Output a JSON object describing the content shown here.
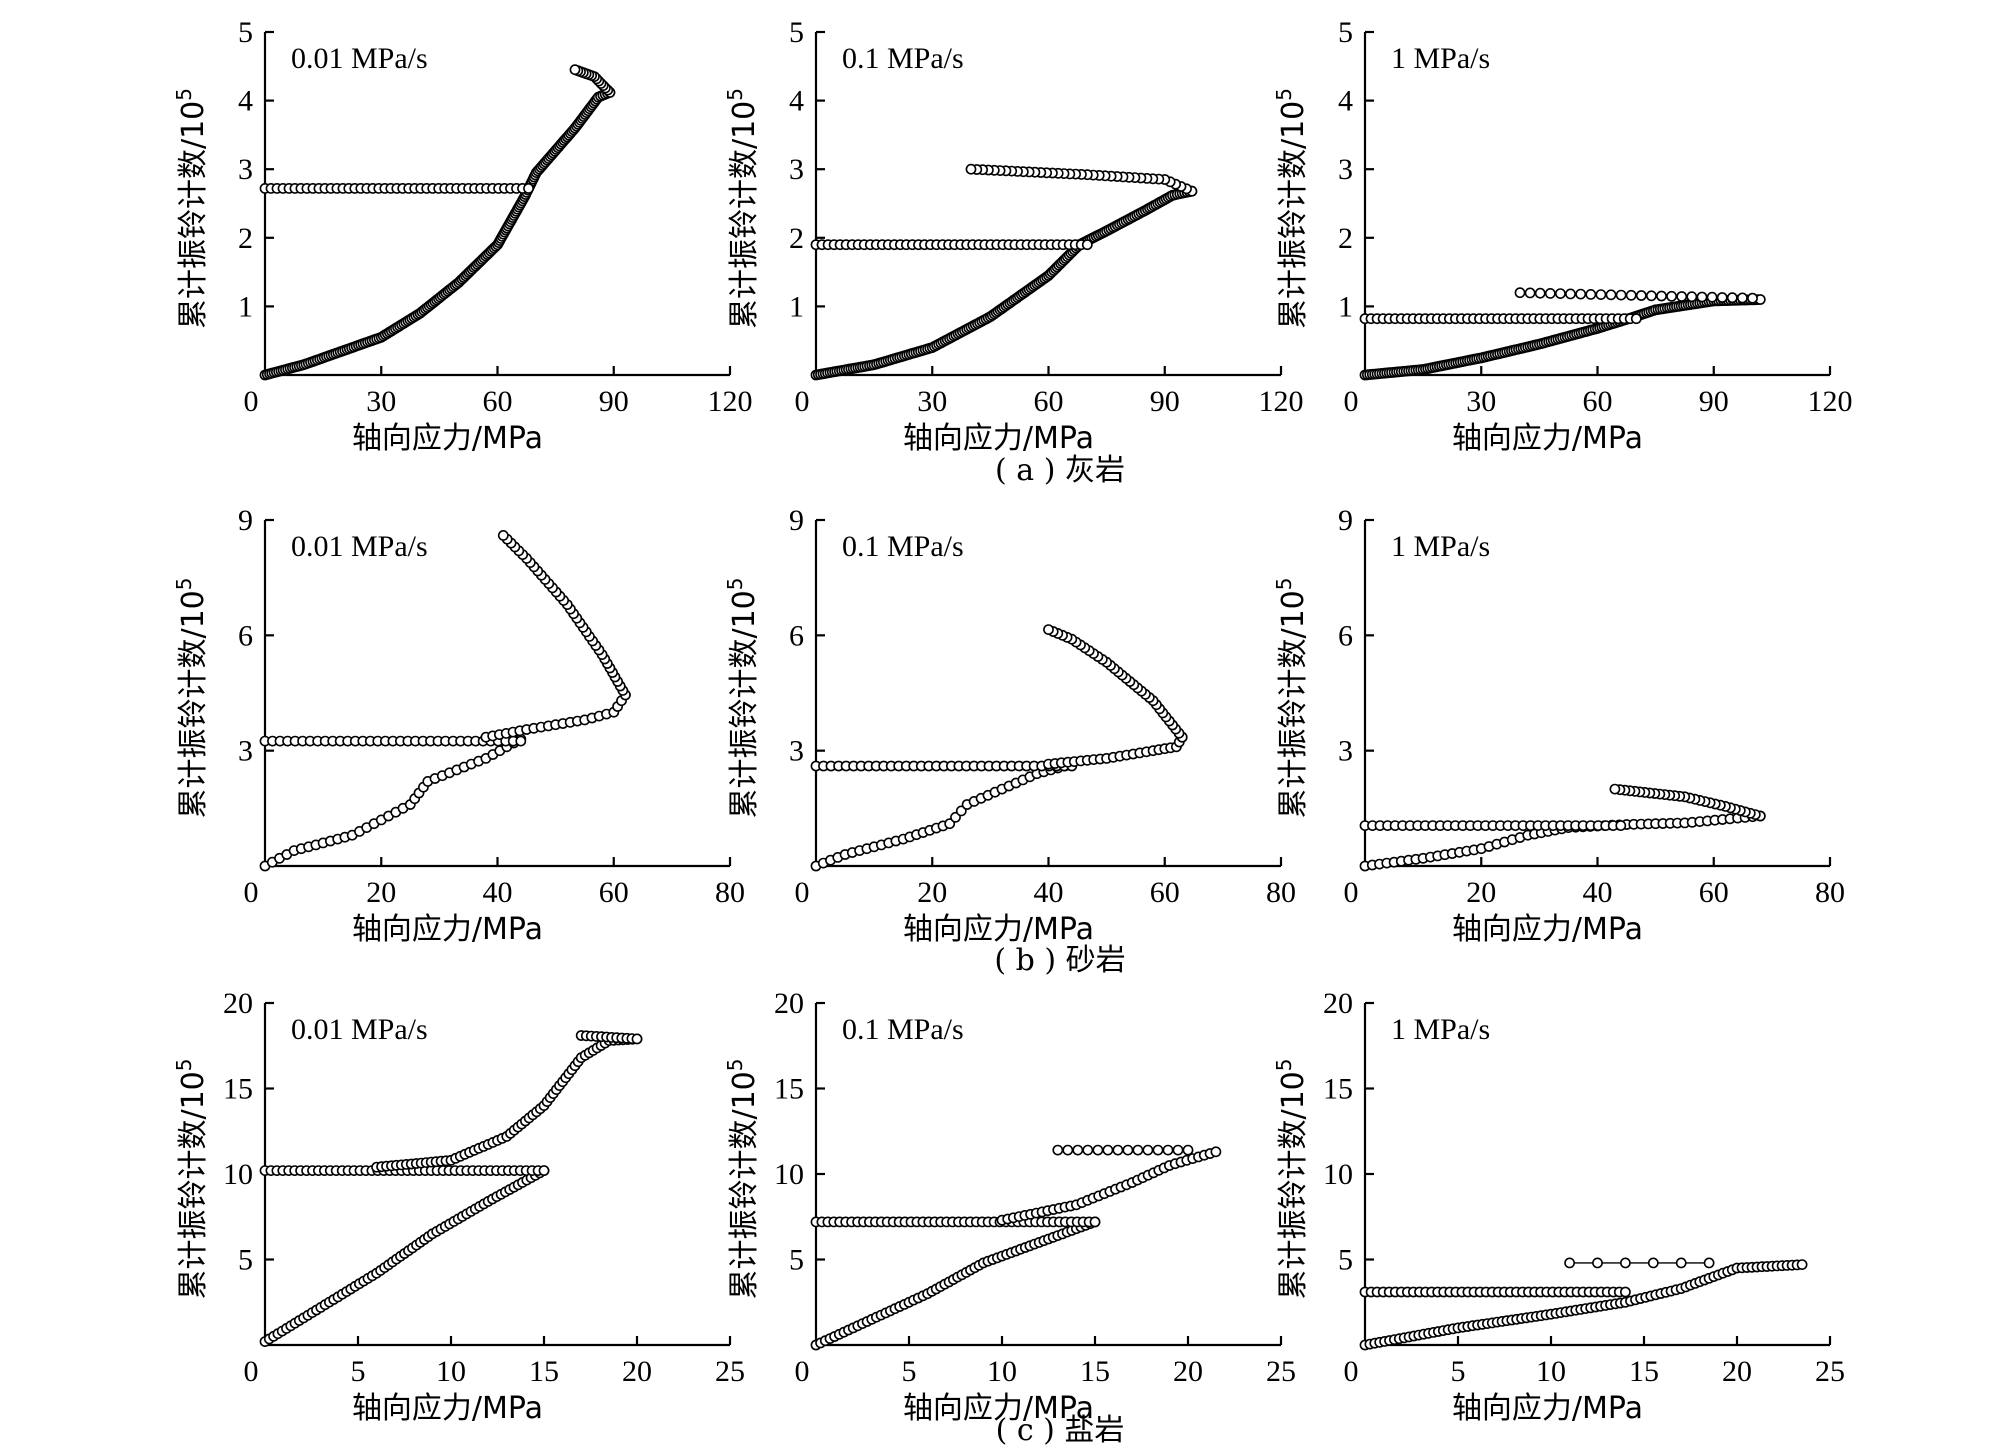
{
  "captions": [
    "( a ) 灰岩",
    "( b ) 砂岩",
    "( c ) 盐岩"
  ],
  "x_axis_label": "轴向应力/MPa",
  "y_axis_label": "累计振铃计数/10",
  "y_axis_label_exponent": "5",
  "chart_data": [
    {
      "id": "limestone-0.01",
      "type": "scatter",
      "row": 0,
      "col": 0,
      "title": "0.01 MPa/s",
      "xlabel": "轴向应力/MPa",
      "ylabel": "累计振铃计数/10^5",
      "xlim": [
        0,
        120
      ],
      "ylim": [
        0,
        5
      ],
      "xticks": [
        0,
        30,
        60,
        90,
        120
      ],
      "yticks": [
        1,
        2,
        3,
        4,
        5
      ],
      "origin_label": "0",
      "grid": false,
      "segments": [
        {
          "kind": "curve",
          "density": 5,
          "points": [
            [
              0,
              0
            ],
            [
              10,
              0.15
            ],
            [
              20,
              0.35
            ],
            [
              30,
              0.55
            ],
            [
              40,
              0.9
            ],
            [
              50,
              1.35
            ],
            [
              60,
              1.9
            ],
            [
              67,
              2.6
            ],
            [
              70,
              2.95
            ],
            [
              80,
              3.6
            ],
            [
              86,
              4.05
            ],
            [
              89,
              4.12
            ]
          ]
        },
        {
          "kind": "curve",
          "density": 4,
          "points": [
            [
              89,
              4.12
            ],
            [
              85,
              4.35
            ],
            [
              80,
              4.45
            ]
          ]
        },
        {
          "kind": "line",
          "density": 2,
          "points": [
            [
              0,
              2.72
            ],
            [
              68,
              2.72
            ]
          ]
        }
      ]
    },
    {
      "id": "limestone-0.1",
      "type": "scatter",
      "row": 0,
      "col": 1,
      "title": "0.1 MPa/s",
      "xlabel": "轴向应力/MPa",
      "ylabel": "累计振铃计数/10^5",
      "xlim": [
        0,
        120
      ],
      "ylim": [
        0,
        5
      ],
      "xticks": [
        0,
        30,
        60,
        90,
        120
      ],
      "yticks": [
        1,
        2,
        3,
        4,
        5
      ],
      "origin_label": "0",
      "grid": false,
      "segments": [
        {
          "kind": "curve",
          "density": 5,
          "points": [
            [
              0,
              0
            ],
            [
              15,
              0.15
            ],
            [
              30,
              0.4
            ],
            [
              45,
              0.85
            ],
            [
              60,
              1.45
            ],
            [
              68,
              1.9
            ],
            [
              75,
              2.1
            ],
            [
              85,
              2.4
            ],
            [
              92,
              2.62
            ],
            [
              97,
              2.68
            ]
          ]
        },
        {
          "kind": "curve",
          "density": 2,
          "points": [
            [
              97,
              2.68
            ],
            [
              90,
              2.85
            ],
            [
              70,
              2.92
            ],
            [
              55,
              2.96
            ],
            [
              40,
              3.0
            ]
          ]
        },
        {
          "kind": "line",
          "density": 2,
          "points": [
            [
              0,
              1.9
            ],
            [
              70,
              1.9
            ]
          ]
        }
      ]
    },
    {
      "id": "limestone-1",
      "type": "scatter",
      "row": 0,
      "col": 2,
      "title": "1 MPa/s",
      "xlabel": "轴向应力/MPa",
      "ylabel": "累计振铃计数/10^5",
      "xlim": [
        0,
        120
      ],
      "ylim": [
        0,
        5
      ],
      "xticks": [
        0,
        30,
        60,
        90,
        120
      ],
      "yticks": [
        1,
        2,
        3,
        4,
        5
      ],
      "origin_label": "0",
      "grid": false,
      "segments": [
        {
          "kind": "curve",
          "density": 5,
          "points": [
            [
              0,
              0
            ],
            [
              15,
              0.08
            ],
            [
              30,
              0.25
            ],
            [
              45,
              0.45
            ],
            [
              60,
              0.68
            ],
            [
              68,
              0.82
            ],
            [
              75,
              0.95
            ],
            [
              90,
              1.08
            ],
            [
              102,
              1.1
            ]
          ]
        },
        {
          "kind": "line",
          "density": 2,
          "points": [
            [
              0,
              0.82
            ],
            [
              70,
              0.82
            ]
          ]
        },
        {
          "kind": "line",
          "density": 1.2,
          "points": [
            [
              40,
              1.2
            ],
            [
              100,
              1.12
            ]
          ]
        }
      ]
    },
    {
      "id": "sandstone-0.01",
      "type": "scatter",
      "row": 1,
      "col": 0,
      "title": "0.01 MPa/s",
      "xlabel": "轴向应力/MPa",
      "ylabel": "累计振铃计数/10^5",
      "xlim": [
        0,
        80
      ],
      "ylim": [
        0,
        9
      ],
      "xticks": [
        0,
        20,
        40,
        60,
        80
      ],
      "yticks": [
        3,
        6,
        9
      ],
      "origin_label": "0",
      "grid": false,
      "segments": [
        {
          "kind": "curve",
          "density": 1.6,
          "points": [
            [
              0,
              0
            ],
            [
              5,
              0.4
            ],
            [
              15,
              0.8
            ],
            [
              20,
              1.2
            ],
            [
              25,
              1.6
            ],
            [
              28,
              2.2
            ],
            [
              33,
              2.5
            ],
            [
              38,
              2.8
            ],
            [
              44,
              3.3
            ]
          ]
        },
        {
          "kind": "line",
          "density": 1.6,
          "points": [
            [
              0,
              3.25
            ],
            [
              44,
              3.25
            ]
          ]
        },
        {
          "kind": "curve",
          "density": 1.6,
          "points": [
            [
              38,
              3.35
            ],
            [
              45,
              3.55
            ],
            [
              55,
              3.8
            ],
            [
              60,
              4.0
            ],
            [
              62,
              4.45
            ]
          ]
        },
        {
          "kind": "curve",
          "density": 2.2,
          "points": [
            [
              62,
              4.45
            ],
            [
              58,
              5.5
            ],
            [
              52,
              6.8
            ],
            [
              45,
              8.0
            ],
            [
              41,
              8.6
            ]
          ]
        }
      ]
    },
    {
      "id": "sandstone-0.1",
      "type": "scatter",
      "row": 1,
      "col": 1,
      "title": "0.1 MPa/s",
      "xlabel": "轴向应力/MPa",
      "ylabel": "累计振铃计数/10^5",
      "xlim": [
        0,
        80
      ],
      "ylim": [
        0,
        9
      ],
      "xticks": [
        0,
        20,
        40,
        60,
        80
      ],
      "yticks": [
        3,
        6,
        9
      ],
      "origin_label": "0",
      "grid": false,
      "segments": [
        {
          "kind": "curve",
          "density": 1.6,
          "points": [
            [
              0,
              0
            ],
            [
              5,
              0.3
            ],
            [
              15,
              0.7
            ],
            [
              23,
              1.1
            ],
            [
              26,
              1.6
            ],
            [
              32,
              2.0
            ],
            [
              38,
              2.4
            ],
            [
              44,
              2.65
            ]
          ]
        },
        {
          "kind": "line",
          "density": 1.6,
          "points": [
            [
              0,
              2.6
            ],
            [
              44,
              2.6
            ]
          ]
        },
        {
          "kind": "curve",
          "density": 1.8,
          "points": [
            [
              40,
              2.65
            ],
            [
              50,
              2.8
            ],
            [
              58,
              3.0
            ],
            [
              62,
              3.1
            ],
            [
              63,
              3.35
            ]
          ]
        },
        {
          "kind": "curve",
          "density": 2.4,
          "points": [
            [
              63,
              3.35
            ],
            [
              58,
              4.3
            ],
            [
              50,
              5.3
            ],
            [
              44,
              5.9
            ],
            [
              40,
              6.15
            ]
          ]
        }
      ]
    },
    {
      "id": "sandstone-1",
      "type": "scatter",
      "row": 1,
      "col": 2,
      "title": "1 MPa/s",
      "xlabel": "轴向应力/MPa",
      "ylabel": "累计振铃计数/10^5",
      "xlim": [
        0,
        80
      ],
      "ylim": [
        0,
        9
      ],
      "xticks": [
        0,
        20,
        40,
        60,
        80
      ],
      "yticks": [
        3,
        6,
        9
      ],
      "origin_label": "0",
      "grid": false,
      "segments": [
        {
          "kind": "curve",
          "density": 1.6,
          "points": [
            [
              0,
              0
            ],
            [
              10,
              0.2
            ],
            [
              20,
              0.45
            ],
            [
              28,
              0.8
            ],
            [
              35,
              1.0
            ],
            [
              45,
              1.08
            ],
            [
              55,
              1.12
            ],
            [
              68,
              1.3
            ]
          ]
        },
        {
          "kind": "line",
          "density": 1.6,
          "points": [
            [
              0,
              1.05
            ],
            [
              44,
              1.05
            ]
          ]
        },
        {
          "kind": "curve",
          "density": 2.4,
          "points": [
            [
              68,
              1.3
            ],
            [
              62,
              1.55
            ],
            [
              55,
              1.8
            ],
            [
              43,
              2.0
            ]
          ]
        }
      ]
    },
    {
      "id": "saltrock-0.01",
      "type": "scatter",
      "row": 2,
      "col": 0,
      "title": "0.01 MPa/s",
      "xlabel": "轴向应力/MPa",
      "ylabel": "累计振铃计数/10^5",
      "xlim": [
        0,
        25
      ],
      "ylim": [
        0,
        20
      ],
      "xticks": [
        0,
        5,
        10,
        15,
        20,
        25
      ],
      "yticks": [
        5,
        10,
        15,
        20
      ],
      "origin_label": "0",
      "grid": false,
      "segments": [
        {
          "kind": "curve",
          "density": 2.4,
          "points": [
            [
              0,
              0.2
            ],
            [
              3,
              2.2
            ],
            [
              6,
              4.2
            ],
            [
              9,
              6.5
            ],
            [
              12,
              8.4
            ],
            [
              15,
              10.2
            ]
          ]
        },
        {
          "kind": "line",
          "density": 2,
          "points": [
            [
              0,
              10.2
            ],
            [
              15,
              10.2
            ]
          ]
        },
        {
          "kind": "curve",
          "density": 2.4,
          "points": [
            [
              6,
              10.4
            ],
            [
              10,
              10.8
            ],
            [
              13,
              12.2
            ],
            [
              15,
              14.0
            ],
            [
              17,
              16.8
            ],
            [
              18.5,
              17.8
            ],
            [
              20,
              17.9
            ]
          ]
        },
        {
          "kind": "line",
          "density": 2.4,
          "points": [
            [
              17,
              18.1
            ],
            [
              20,
              17.9
            ]
          ]
        }
      ]
    },
    {
      "id": "saltrock-0.1",
      "type": "scatter",
      "row": 2,
      "col": 1,
      "title": "0.1 MPa/s",
      "xlabel": "轴向应力/MPa",
      "ylabel": "累计振铃计数/10^5",
      "xlim": [
        0,
        25
      ],
      "ylim": [
        0,
        20
      ],
      "xticks": [
        0,
        5,
        10,
        15,
        20,
        25
      ],
      "yticks": [
        5,
        10,
        15,
        20
      ],
      "origin_label": "0",
      "grid": false,
      "segments": [
        {
          "kind": "curve",
          "density": 2.4,
          "points": [
            [
              0,
              0
            ],
            [
              3,
              1.5
            ],
            [
              6,
              3.0
            ],
            [
              9,
              4.8
            ],
            [
              12,
              6.0
            ],
            [
              15,
              7.2
            ]
          ]
        },
        {
          "kind": "line",
          "density": 2,
          "points": [
            [
              0,
              7.2
            ],
            [
              15,
              7.2
            ]
          ]
        },
        {
          "kind": "curve",
          "density": 2,
          "points": [
            [
              10,
              7.3
            ],
            [
              14,
              8.2
            ],
            [
              17,
              9.5
            ],
            [
              19,
              10.5
            ],
            [
              21.5,
              11.3
            ]
          ]
        },
        {
          "kind": "line",
          "density": 1.2,
          "points": [
            [
              13,
              11.4
            ],
            [
              20,
              11.4
            ]
          ]
        }
      ]
    },
    {
      "id": "saltrock-1",
      "type": "scatter",
      "row": 2,
      "col": 2,
      "title": "1 MPa/s",
      "xlabel": "轴向应力/MPa",
      "ylabel": "累计振铃计数/10^5",
      "xlim": [
        0,
        25
      ],
      "ylim": [
        0,
        20
      ],
      "xticks": [
        0,
        5,
        10,
        15,
        20,
        25
      ],
      "yticks": [
        5,
        10,
        15,
        20
      ],
      "origin_label": "0",
      "grid": false,
      "segments": [
        {
          "kind": "curve",
          "density": 2.4,
          "points": [
            [
              0,
              0
            ],
            [
              5,
              1.0
            ],
            [
              10,
              1.8
            ],
            [
              14,
              2.5
            ],
            [
              17,
              3.3
            ],
            [
              20,
              4.5
            ],
            [
              23.5,
              4.7
            ]
          ]
        },
        {
          "kind": "line",
          "density": 2,
          "points": [
            [
              0,
              3.1
            ],
            [
              14,
              3.1
            ]
          ]
        },
        {
          "kind": "line",
          "density": 0.4,
          "points": [
            [
              11,
              4.8
            ],
            [
              18.5,
              4.8
            ]
          ]
        }
      ]
    }
  ]
}
